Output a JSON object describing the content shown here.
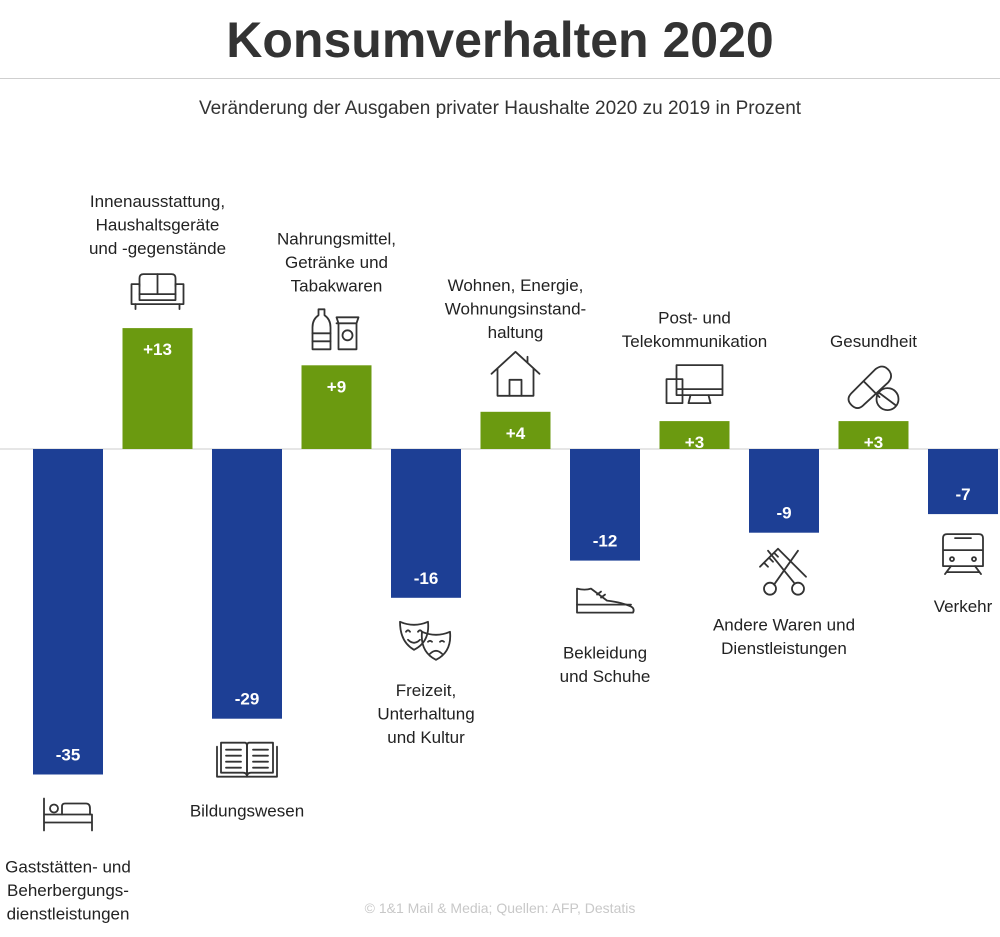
{
  "title": "Konsumverhalten 2020",
  "subtitle": "Veränderung der Ausgaben privater Haushalte 2020 zu 2019 in Prozent",
  "source": "© 1&1 Mail & Media;  Quellen: AFP, Destatis",
  "colors": {
    "positive": "#6b9a10",
    "negative": "#1d3f95",
    "baseline": "#cccccc"
  },
  "chart_data": {
    "type": "bar",
    "title": "Konsumverhalten 2020",
    "subtitle": "Veränderung der Ausgaben privater Haushalte 2020 zu 2019 in Prozent",
    "xlabel": "",
    "ylabel": "",
    "ylim": [
      -35,
      13
    ],
    "categories": [
      "Gaststätten- und Beherbergungs- dienstleistungen",
      "Innenausstattung, Haushaltsgeräte und -gegenstände",
      "Bildungswesen",
      "Nahrungsmittel, Getränke und Tabakwaren",
      "Freizeit, Unterhaltung und Kultur",
      "Wohnen, Energie, Wohnungsinstand- haltung",
      "Bekleidung und Schuhe",
      "Post- und Telekommunikation",
      "Andere Waren und Dienstleistungen",
      "Gesundheit",
      "Verkehr"
    ],
    "values": [
      -35,
      13,
      -29,
      9,
      -16,
      4,
      -12,
      3,
      -9,
      3,
      -7
    ],
    "value_labels": [
      "-35",
      "+13",
      "-29",
      "+9",
      "-16",
      "+4",
      "-12",
      "+3",
      "-9",
      "+3",
      "-7"
    ],
    "category_lines": [
      [
        "Gaststätten- und",
        "Beherbergungs-",
        "dienstleistungen"
      ],
      [
        "Innenausstattung,",
        "Haushaltsgeräte",
        "und -gegenstände"
      ],
      [
        "Bildungswesen"
      ],
      [
        "Nahrungsmittel,",
        "Getränke und",
        "Tabakwaren"
      ],
      [
        "Freizeit,",
        "Unterhaltung",
        "und Kultur"
      ],
      [
        "Wohnen, Energie,",
        "Wohnungsinstand-",
        "haltung"
      ],
      [
        "Bekleidung",
        "und Schuhe"
      ],
      [
        "Post- und",
        "Telekommunikation"
      ],
      [
        "Andere Waren und",
        "Dienstleistungen"
      ],
      [
        "Gesundheit"
      ],
      [
        "Verkehr"
      ]
    ],
    "icons": [
      "bed-icon",
      "sofa-icon",
      "book-icon",
      "groceries-icon",
      "theater-masks-icon",
      "house-icon",
      "sneaker-icon",
      "devices-icon",
      "scissors-comb-icon",
      "pills-icon",
      "train-icon"
    ]
  }
}
